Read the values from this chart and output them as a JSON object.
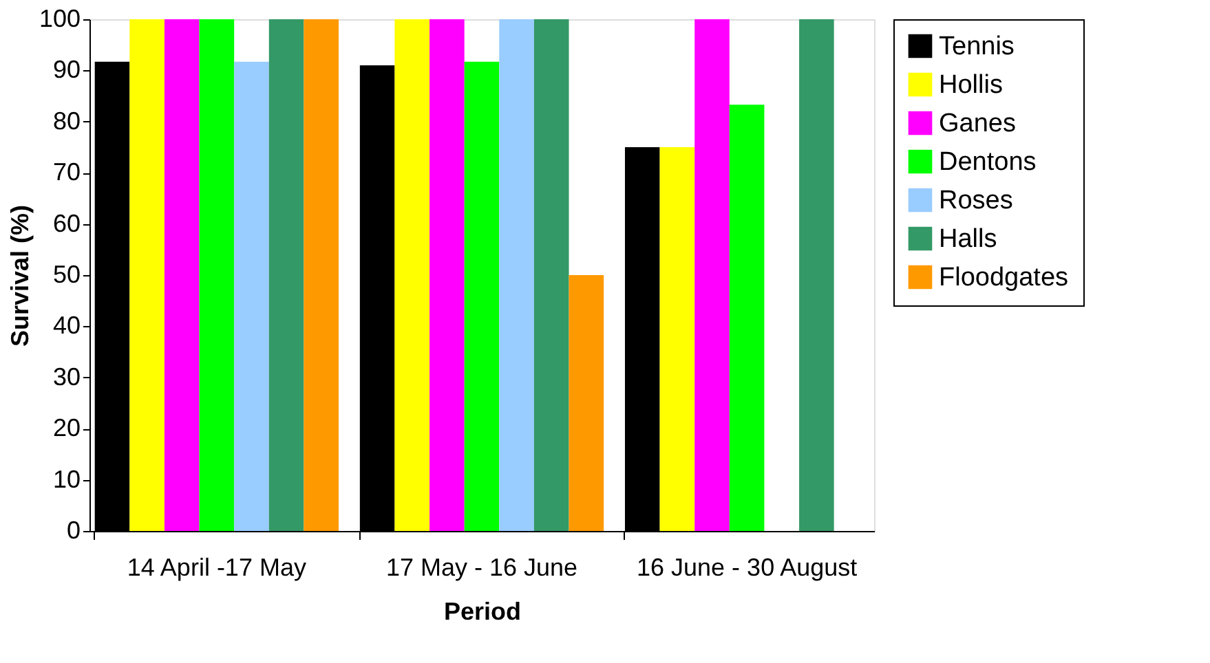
{
  "chart_data": {
    "type": "bar",
    "xlabel": "Period",
    "ylabel": "Survival (%)",
    "categories": [
      "14 April -17 May",
      "17 May - 16 June",
      "16 June - 30 August"
    ],
    "series": [
      {
        "name": "Tennis",
        "color": "#000000",
        "values": [
          91.7,
          91,
          75
        ]
      },
      {
        "name": "Hollis",
        "color": "#ffff00",
        "values": [
          100,
          100,
          75
        ]
      },
      {
        "name": "Ganes",
        "color": "#ff00ff",
        "values": [
          100,
          100,
          100
        ]
      },
      {
        "name": "Dentons",
        "color": "#00ff00",
        "values": [
          100,
          91.7,
          83.3
        ]
      },
      {
        "name": "Roses",
        "color": "#99ccff",
        "values": [
          91.7,
          100,
          0
        ]
      },
      {
        "name": "Halls",
        "color": "#339966",
        "values": [
          100,
          100,
          100
        ]
      },
      {
        "name": "Floodgates",
        "color": "#ff9900",
        "values": [
          100,
          50,
          0
        ]
      }
    ],
    "ylim": [
      0,
      100
    ],
    "yticks": [
      0,
      10,
      20,
      30,
      40,
      50,
      60,
      70,
      80,
      90,
      100
    ],
    "grid": false,
    "legend": "right"
  }
}
